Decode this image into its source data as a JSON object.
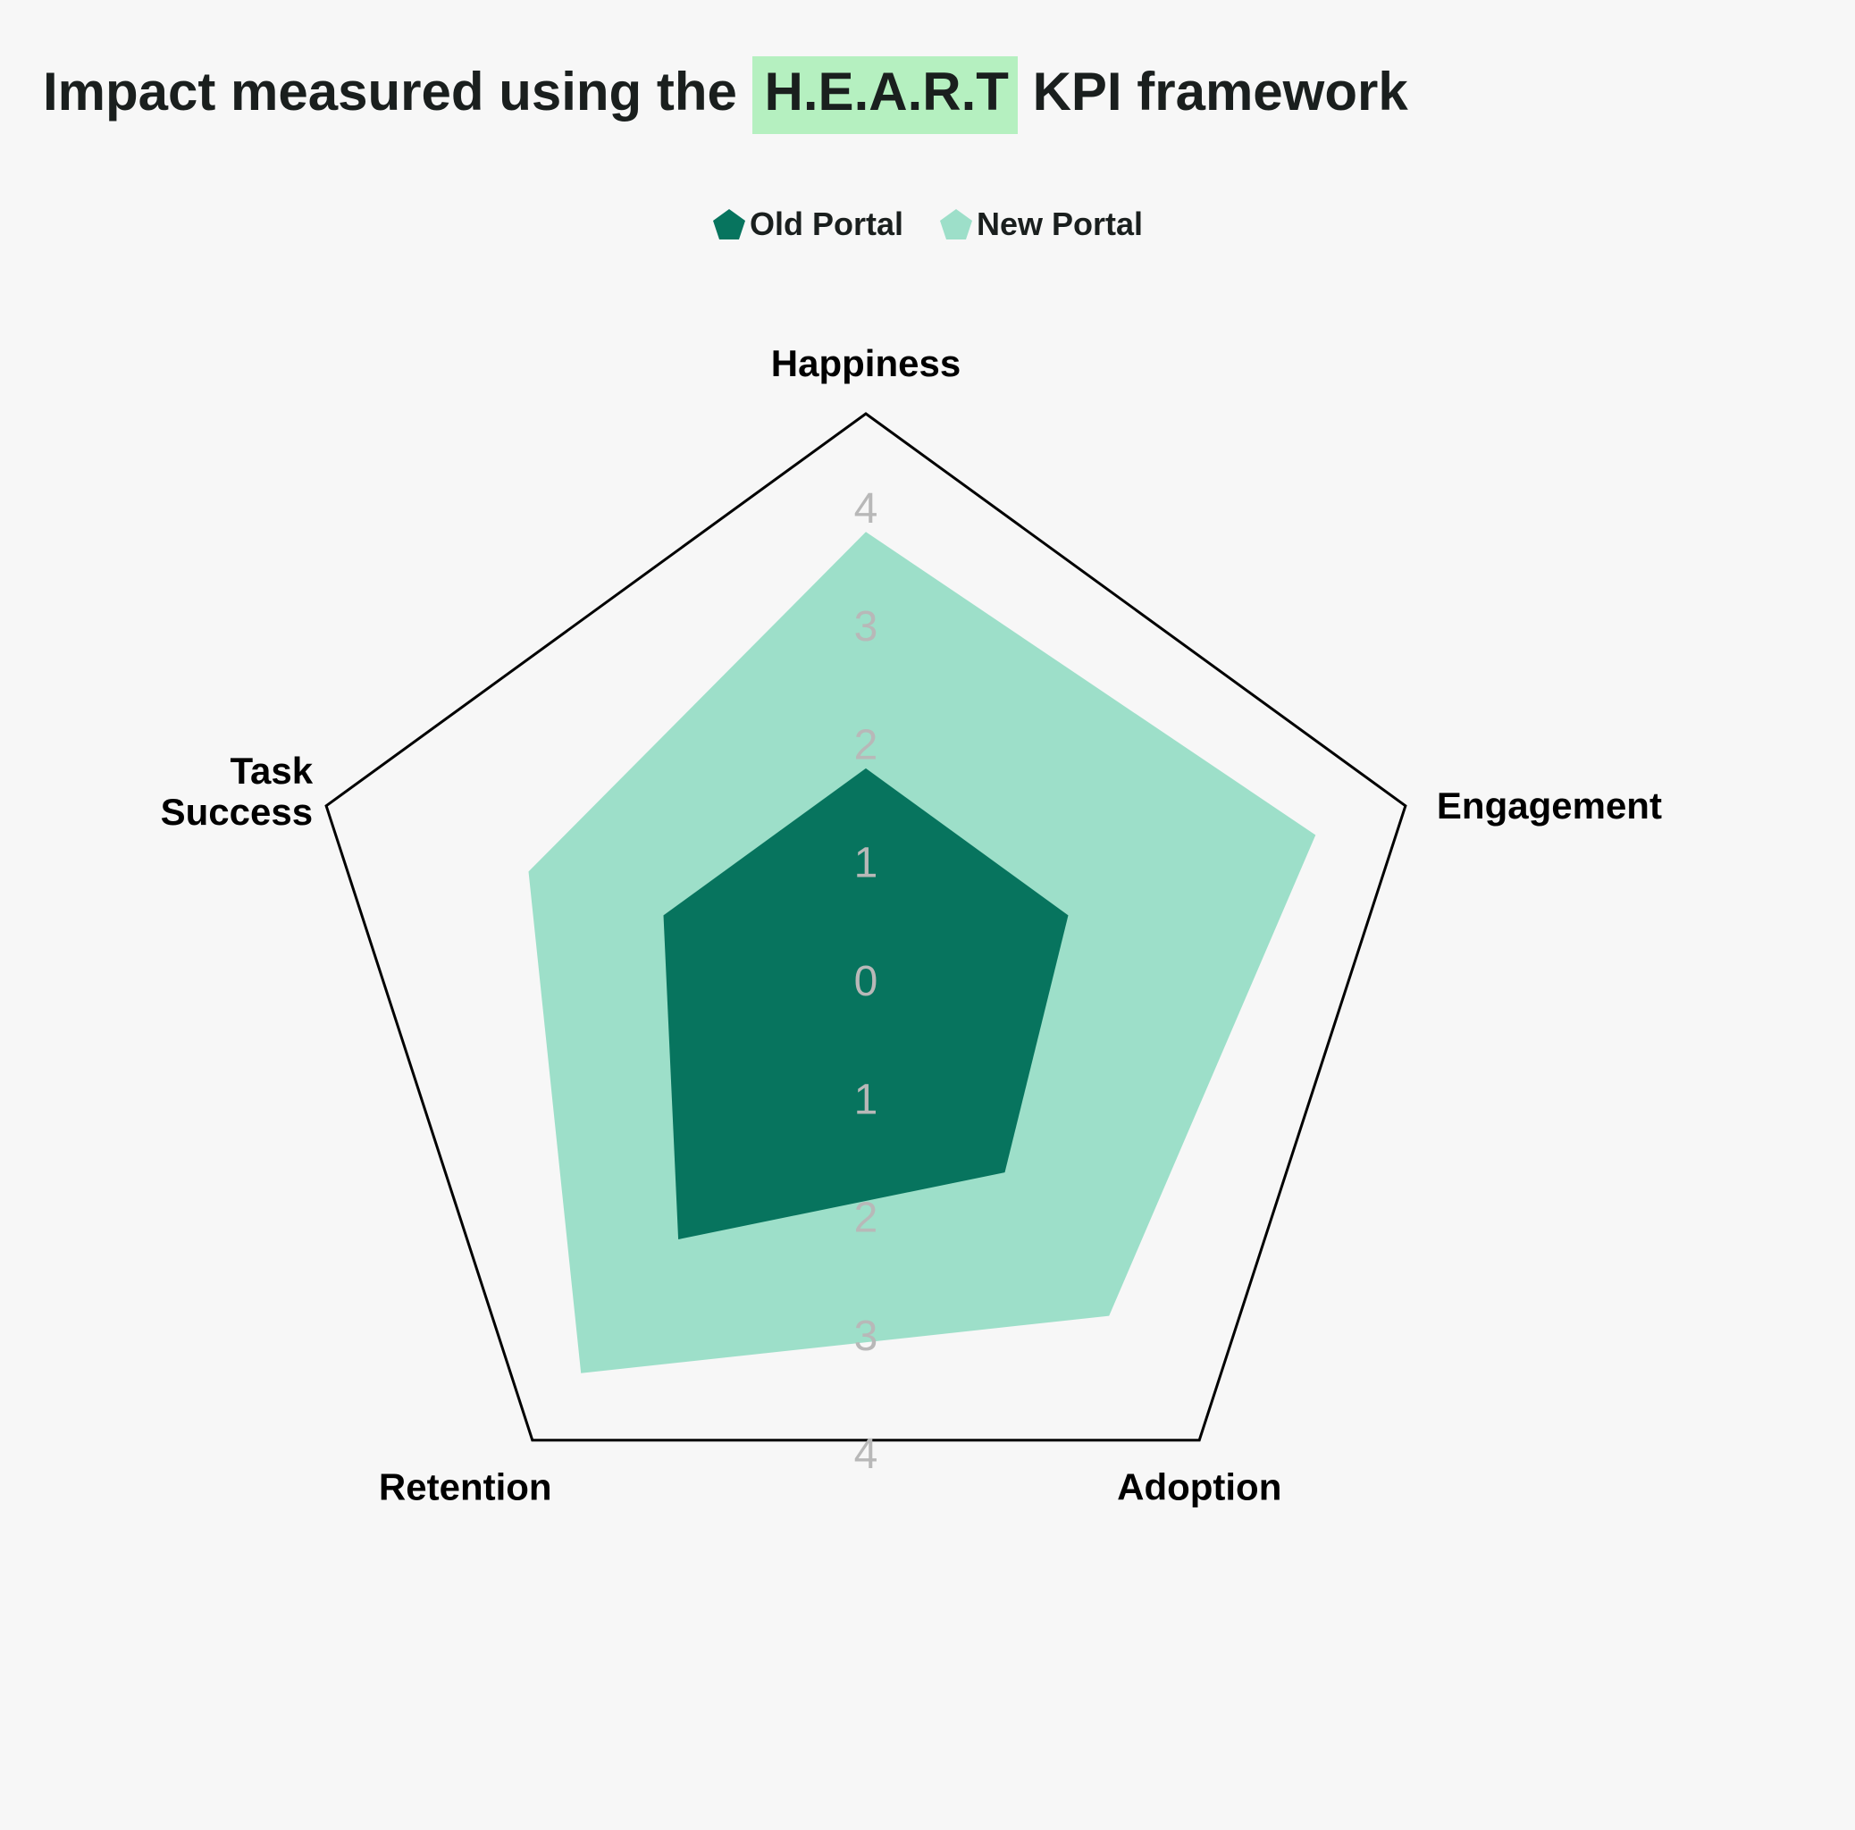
{
  "title": {
    "prefix": "Impact measured using the",
    "highlight": "H.E.A.R.T",
    "suffix": "KPI framework"
  },
  "colors": {
    "background": "#f7f7f7",
    "old_portal": "#07745e",
    "new_portal": "#9ddfc9",
    "highlight": "#b5f0c0",
    "outline": "#000000",
    "tick": "#b8b8b8"
  },
  "chart_data": {
    "type": "radar",
    "categories": [
      "Happiness",
      "Engagement",
      "Adoption",
      "Retention",
      "Task Success"
    ],
    "category_lines": [
      [
        "Happiness"
      ],
      [
        "Engagement"
      ],
      [
        "Adoption"
      ],
      [
        "Retention"
      ],
      [
        "Task",
        "Success"
      ]
    ],
    "series": [
      {
        "name": "Old Portal",
        "values": [
          1.8,
          1.8,
          2.0,
          2.7,
          1.8
        ]
      },
      {
        "name": "New Portal",
        "values": [
          3.8,
          4.0,
          3.5,
          4.1,
          3.0
        ]
      }
    ],
    "r_range": [
      0,
      4.8
    ],
    "tick_labels_up": [
      "4",
      "3",
      "2",
      "1",
      "0"
    ],
    "tick_labels_down": [
      "1",
      "2",
      "3",
      "4"
    ],
    "legend_position": "top-center",
    "grid": false
  }
}
